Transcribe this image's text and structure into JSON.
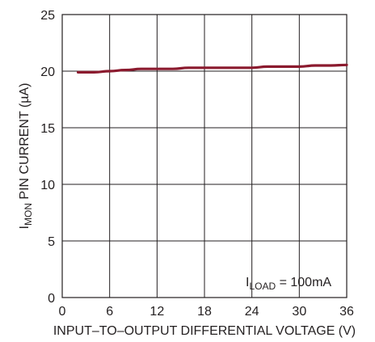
{
  "chart_data": {
    "type": "line",
    "title": "",
    "xlabel": "INPUT–TO–OUTPUT DIFFERENTIAL VOLTAGE (V)",
    "ylabel": {
      "prefix": "I",
      "subscript": "MON",
      "suffix": " PIN CURRENT (µA)"
    },
    "xlim": [
      0,
      36
    ],
    "ylim": [
      0,
      25
    ],
    "x_ticks": [
      0,
      6,
      12,
      18,
      24,
      30,
      36
    ],
    "y_ticks": [
      0,
      5,
      10,
      15,
      20,
      25
    ],
    "grid": true,
    "series": [
      {
        "color": "#8b1a2e",
        "x": [
          2,
          4,
          6,
          8,
          10,
          12,
          14,
          16,
          18,
          20,
          22,
          24,
          26,
          28,
          30,
          32,
          34,
          36
        ],
        "y": [
          19.9,
          19.9,
          20.0,
          20.1,
          20.2,
          20.2,
          20.2,
          20.3,
          20.3,
          20.3,
          20.3,
          20.3,
          20.4,
          20.4,
          20.4,
          20.5,
          20.5,
          20.55
        ]
      }
    ],
    "annotation": {
      "prefix": "I",
      "subscript": "LOAD",
      "suffix": " = 100mA"
    }
  },
  "colors": {
    "grid": "#231f20",
    "text": "#231f20",
    "series": "#8b1a2e"
  }
}
